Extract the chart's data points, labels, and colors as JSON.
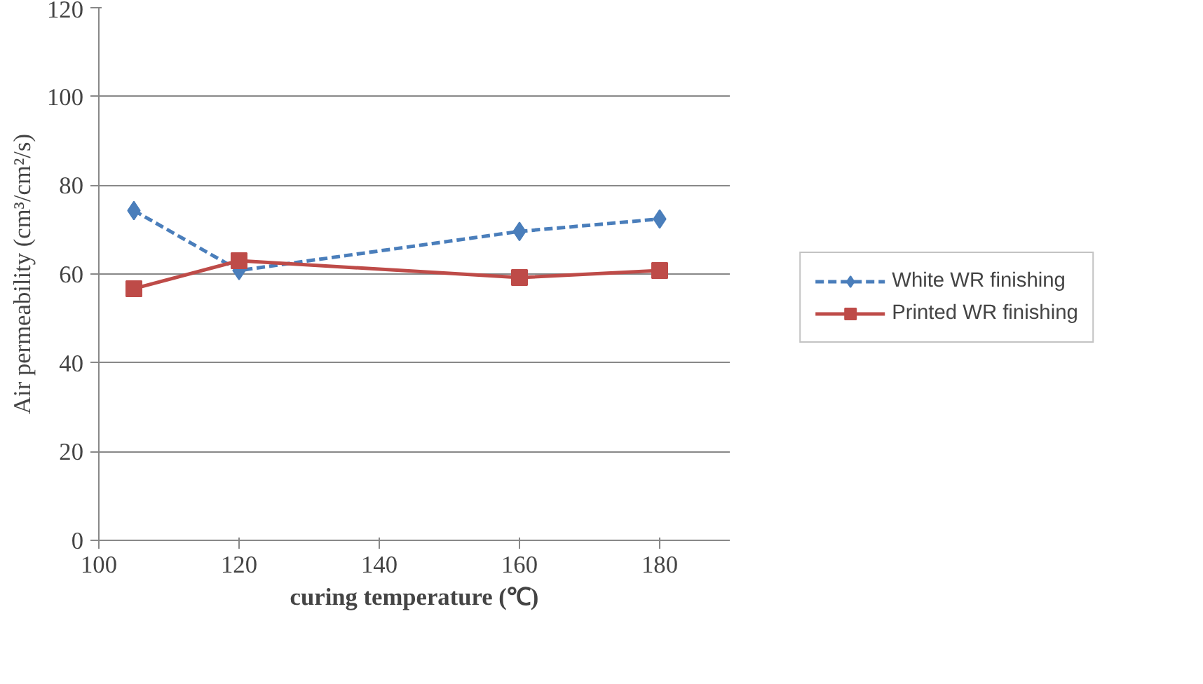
{
  "chart_data": {
    "type": "line",
    "xlabel": "curing temperature (℃)",
    "ylabel": "Air permeability (cm³/cm²/s)",
    "xlim": [
      100,
      190
    ],
    "xticks": [
      100,
      120,
      140,
      160,
      180
    ],
    "ylim": [
      0,
      120
    ],
    "yticks": [
      0,
      20,
      40,
      60,
      80,
      100,
      120
    ],
    "grid": "y",
    "legend": "right",
    "series": [
      {
        "name": "White WR finishing",
        "color": "#4a7ebb",
        "x": [
          105,
          120,
          160,
          180
        ],
        "values": [
          74.3,
          60.8,
          69.6,
          72.4
        ],
        "marker": "diamond",
        "line_style": "dashed"
      },
      {
        "name": "Printed WR finishing",
        "color": "#be4b48",
        "x": [
          105,
          120,
          160,
          180
        ],
        "values": [
          56.7,
          63,
          59.2,
          60.8
        ],
        "marker": "square",
        "line_style": "solid"
      }
    ]
  }
}
